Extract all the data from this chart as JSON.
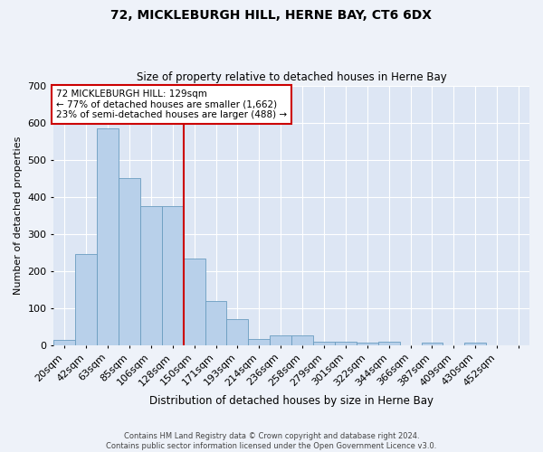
{
  "title": "72, MICKLEBURGH HILL, HERNE BAY, CT6 6DX",
  "subtitle": "Size of property relative to detached houses in Herne Bay",
  "xlabel": "Distribution of detached houses by size in Herne Bay",
  "ylabel": "Number of detached properties",
  "bar_color": "#b8d0ea",
  "bar_edge_color": "#6a9cc0",
  "bar_heights": [
    15,
    245,
    585,
    450,
    375,
    375,
    235,
    120,
    70,
    18,
    28,
    28,
    10,
    10,
    7,
    10,
    0,
    8,
    0,
    7,
    0,
    0
  ],
  "bin_labels": [
    "20sqm",
    "42sqm",
    "63sqm",
    "85sqm",
    "106sqm",
    "128sqm",
    "150sqm",
    "171sqm",
    "193sqm",
    "214sqm",
    "236sqm",
    "258sqm",
    "279sqm",
    "301sqm",
    "322sqm",
    "344sqm",
    "366sqm",
    "387sqm",
    "409sqm",
    "430sqm",
    "452sqm",
    ""
  ],
  "ylim": [
    0,
    700
  ],
  "yticks": [
    0,
    100,
    200,
    300,
    400,
    500,
    600,
    700
  ],
  "annotation_text": "72 MICKLEBURGH HILL: 129sqm\n← 77% of detached houses are smaller (1,662)\n23% of semi-detached houses are larger (488) →",
  "annotation_box_color": "#ffffff",
  "annotation_box_edge_color": "#cc0000",
  "line_color": "#cc0000",
  "footer_text": "Contains HM Land Registry data © Crown copyright and database right 2024.\nContains public sector information licensed under the Open Government Licence v3.0.",
  "fig_background": "#eef2f9",
  "plot_background": "#dde6f4",
  "grid_color": "#ffffff"
}
